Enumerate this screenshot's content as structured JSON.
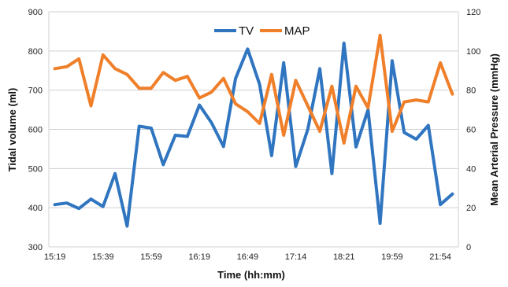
{
  "chart_data": {
    "type": "line",
    "x": [
      "15:19",
      "15:24",
      "15:29",
      "15:34",
      "15:39",
      "15:44",
      "15:49",
      "15:54",
      "15:59",
      "16:04",
      "16:09",
      "16:14",
      "16:19",
      "16:24",
      "16:29",
      "16:34",
      "16:49",
      "16:54",
      "17:04",
      "17:09",
      "17:14",
      "17:19",
      "17:24",
      "17:29",
      "18:21",
      "18:26",
      "18:31",
      "18:36",
      "19:59",
      "20:04",
      "20:59",
      "21:04",
      "21:54",
      "21:59"
    ],
    "x_tick_labels": [
      "15:19",
      "15:39",
      "15:59",
      "16:19",
      "16:49",
      "17:14",
      "18:21",
      "19:59",
      "21:54"
    ],
    "series": [
      {
        "name": "TV",
        "axis": "left",
        "color": "#2F75C0",
        "values": [
          408,
          412,
          398,
          422,
          403,
          487,
          353,
          608,
          603,
          510,
          585,
          582,
          662,
          617,
          556,
          730,
          805,
          715,
          533,
          770,
          505,
          600,
          755,
          487,
          820,
          555,
          650,
          360,
          775,
          592,
          575,
          610,
          408,
          435
        ]
      },
      {
        "name": "MAP",
        "axis": "right",
        "color": "#F07F2A",
        "values": [
          91,
          92,
          96,
          72,
          98,
          91,
          88,
          81,
          81,
          89,
          85,
          87,
          76,
          79,
          86,
          73,
          69,
          63,
          88,
          57,
          85,
          72,
          59,
          82,
          53,
          82,
          71,
          108,
          59,
          74,
          75,
          74,
          94,
          78
        ]
      }
    ],
    "xlabel": "Time (hh:mm)",
    "ylabel": "Tidal volume (ml)",
    "y2label": "Mean Arterial Pressure (mmHg)",
    "ylim": [
      300,
      900
    ],
    "y_ticks": [
      300,
      400,
      500,
      600,
      700,
      800,
      900
    ],
    "y2lim": [
      0,
      120
    ],
    "y2_ticks": [
      0,
      20,
      40,
      60,
      80,
      100,
      120
    ],
    "grid": true,
    "legend": "top-center"
  }
}
